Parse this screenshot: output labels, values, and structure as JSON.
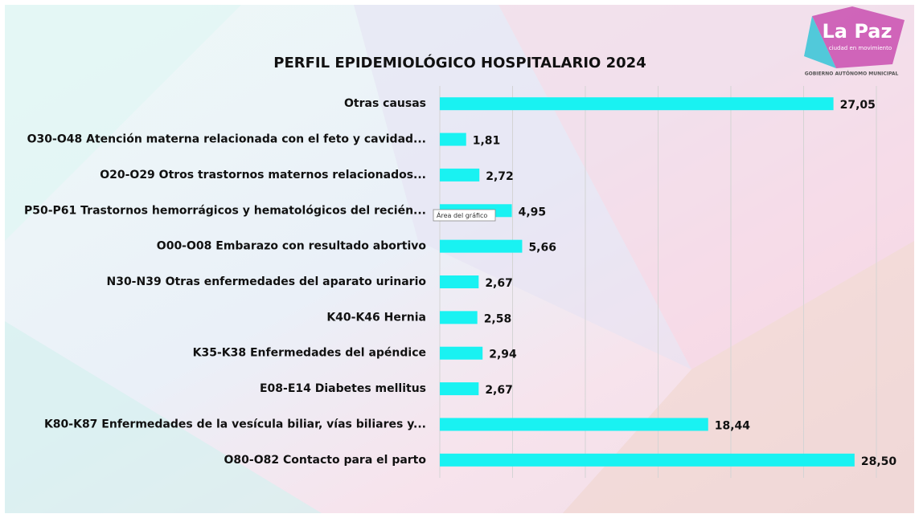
{
  "chart_data": {
    "type": "barh",
    "title": "PERFIL EPIDEMIOLÓGICO HOSPITALARIO 2024",
    "categories": [
      "Otras causas",
      "O30-O48 Atención materna relacionada con el feto y cavidad...",
      "O20-O29 Otros trastornos maternos relacionados...",
      "P50-P61 Trastornos hemorrágicos y hematológicos del recién...",
      "O00-O08 Embarazo con resultado abortivo",
      "N30-N39 Otras enfermedades del aparato urinario",
      "K40-K46 Hernia",
      "K35-K38 Enfermedades del apéndice",
      "E08-E14 Diabetes mellitus",
      "K80-K87 Enfermedades de la vesícula biliar, vías biliares y...",
      "O80-O82 Contacto para el parto"
    ],
    "values": [
      27.05,
      1.81,
      2.72,
      4.95,
      5.66,
      2.67,
      2.58,
      2.94,
      2.67,
      18.44,
      28.5
    ],
    "value_labels": [
      "27,05",
      "1,81",
      "2,72",
      "4,95",
      "5,66",
      "2,67",
      "2,58",
      "2,94",
      "2,67",
      "18,44",
      "28,50"
    ],
    "color": "#19f2f2",
    "xlim": [
      0,
      30
    ],
    "xticks": [
      0,
      5,
      10,
      15,
      20,
      25,
      30
    ],
    "grid": true
  },
  "logo": {
    "name": "La Paz",
    "slogan": "ciudad en movimiento",
    "org": "GOBIERNO AUTÓNOMO MUNICIPAL"
  },
  "tooltip": "Área del gráfico"
}
